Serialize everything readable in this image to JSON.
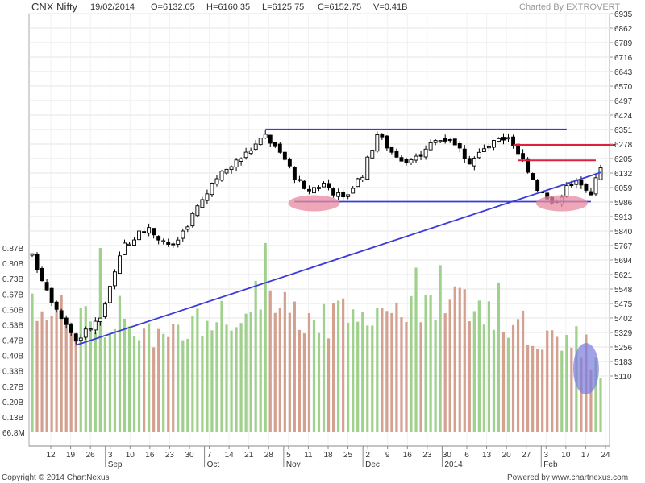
{
  "header": {
    "symbol": "CNX Nifty",
    "date": "19/02/2014",
    "open": "O=6132.05",
    "high": "H=6160.35",
    "low": "L=6125.75",
    "close": "C=6152.75",
    "volume": "V=0.41B",
    "charted_by": "Charted By EXTROVERT"
  },
  "footer": {
    "copyright": "Copyright © 2014 ChartNexus",
    "powered_by": "Powered by www.chartnexus.com"
  },
  "colors": {
    "up_volume": "#9fd08c",
    "down_volume": "#d4a090",
    "candle": "#000000",
    "trendline": "#3b3bd8",
    "resistance": "#e0203a",
    "highlight": "#e88aa0",
    "volume_highlight": "#7a7ae0"
  },
  "chart_data": {
    "type": "candlestick",
    "price_axis": {
      "side": "right",
      "ylim": [
        5050,
        6960
      ],
      "ticks": [
        "6935",
        "6862",
        "6789",
        "6716",
        "6643",
        "6570",
        "6497",
        "6424",
        "6351",
        "6278",
        "6205",
        "6132",
        "6059",
        "5986",
        "5913",
        "5840",
        "5767",
        "5694",
        "5621",
        "5548",
        "5475",
        "5402",
        "5329",
        "5256",
        "5183",
        "5110"
      ]
    },
    "volume_axis": {
      "side": "left",
      "unit": "B",
      "ticks": [
        "0.87B",
        "0.80B",
        "0.73B",
        "0.67B",
        "0.60B",
        "0.53B",
        "0.47B",
        "0.40B",
        "0.33B",
        "0.27B",
        "0.20B",
        "0.13B",
        "66.8M"
      ]
    },
    "x_axis": {
      "day_ticks": [
        "12",
        "19",
        "26",
        "3",
        "10",
        "16",
        "23",
        "30",
        "7",
        "14",
        "21",
        "28",
        "5",
        "11",
        "18",
        "25",
        "2",
        "9",
        "16",
        "23",
        "30",
        "6",
        "13",
        "20",
        "27",
        "3",
        "10",
        "17",
        "24"
      ],
      "month_labels": [
        "Sep",
        "Oct",
        "Nov",
        "Dec",
        "2014",
        "Feb"
      ]
    },
    "close_path": [
      {
        "x": 0,
        "close": 5710
      },
      {
        "x": 4,
        "close": 5500
      },
      {
        "x": 9,
        "close": 5290
      },
      {
        "x": 14,
        "close": 5400
      },
      {
        "x": 19,
        "close": 5780
      },
      {
        "x": 24,
        "close": 5850
      },
      {
        "x": 29,
        "close": 5760
      },
      {
        "x": 34,
        "close": 5960
      },
      {
        "x": 39,
        "close": 6130
      },
      {
        "x": 44,
        "close": 6230
      },
      {
        "x": 48,
        "close": 6320
      },
      {
        "x": 52,
        "close": 6200
      },
      {
        "x": 56,
        "close": 6040
      },
      {
        "x": 60,
        "close": 6080
      },
      {
        "x": 64,
        "close": 6000
      },
      {
        "x": 68,
        "close": 6130
      },
      {
        "x": 71,
        "close": 6330
      },
      {
        "x": 74,
        "close": 6240
      },
      {
        "x": 78,
        "close": 6180
      },
      {
        "x": 82,
        "close": 6290
      },
      {
        "x": 86,
        "close": 6310
      },
      {
        "x": 90,
        "close": 6190
      },
      {
        "x": 94,
        "close": 6270
      },
      {
        "x": 98,
        "close": 6320
      },
      {
        "x": 101,
        "close": 6200
      },
      {
        "x": 104,
        "close": 6060
      },
      {
        "x": 107,
        "close": 5970
      },
      {
        "x": 110,
        "close": 6060
      },
      {
        "x": 113,
        "close": 6090
      },
      {
        "x": 115,
        "close": 6040
      },
      {
        "x": 117,
        "close": 6153
      }
    ],
    "volume_path": [
      {
        "x": 0,
        "vol": 0.62
      },
      {
        "x": 6,
        "vol": 0.6
      },
      {
        "x": 12,
        "vol": 0.55
      },
      {
        "x": 18,
        "vol": 0.6
      },
      {
        "x": 24,
        "vol": 0.55
      },
      {
        "x": 30,
        "vol": 0.5
      },
      {
        "x": 36,
        "vol": 0.58
      },
      {
        "x": 42,
        "vol": 0.62
      },
      {
        "x": 48,
        "vol": 0.7
      },
      {
        "x": 54,
        "vol": 0.62
      },
      {
        "x": 60,
        "vol": 0.57
      },
      {
        "x": 66,
        "vol": 0.6
      },
      {
        "x": 72,
        "vol": 0.64
      },
      {
        "x": 78,
        "vol": 0.6
      },
      {
        "x": 84,
        "vol": 0.66
      },
      {
        "x": 90,
        "vol": 0.62
      },
      {
        "x": 96,
        "vol": 0.57
      },
      {
        "x": 102,
        "vol": 0.54
      },
      {
        "x": 108,
        "vol": 0.52
      },
      {
        "x": 114,
        "vol": 0.46
      },
      {
        "x": 117,
        "vol": 0.41
      }
    ],
    "volume_spikes": [
      {
        "x": 14,
        "vol": 0.87
      },
      {
        "x": 48,
        "vol": 0.89
      },
      {
        "x": 79,
        "vol": 0.79
      },
      {
        "x": 84,
        "vol": 0.8
      },
      {
        "x": 96,
        "vol": 0.73
      }
    ],
    "bar_count": 118,
    "annotations": [
      {
        "kind": "trendline",
        "from": {
          "x": 9,
          "price": 5265
        },
        "to": {
          "x": 117,
          "price": 6135
        }
      },
      {
        "kind": "horizontal",
        "from": {
          "x": 48,
          "price": 6352
        },
        "to": {
          "x": 110,
          "price": 6352
        }
      },
      {
        "kind": "horizontal",
        "from": {
          "x": 54,
          "price": 5988
        },
        "to": {
          "x": 115,
          "price": 5988
        }
      },
      {
        "kind": "resistance",
        "from": {
          "x": 99,
          "price": 6274
        },
        "to": {
          "x": 120,
          "price": 6274
        }
      },
      {
        "kind": "resistance",
        "from": {
          "x": 100,
          "price": 6196
        },
        "to": {
          "x": 116,
          "price": 6196
        }
      },
      {
        "kind": "ellipse_price",
        "x": 58,
        "price": 5980
      },
      {
        "kind": "ellipse_price",
        "x": 109,
        "price": 5980
      },
      {
        "kind": "ellipse_volume",
        "x": 114,
        "vol": 0.38
      }
    ]
  }
}
